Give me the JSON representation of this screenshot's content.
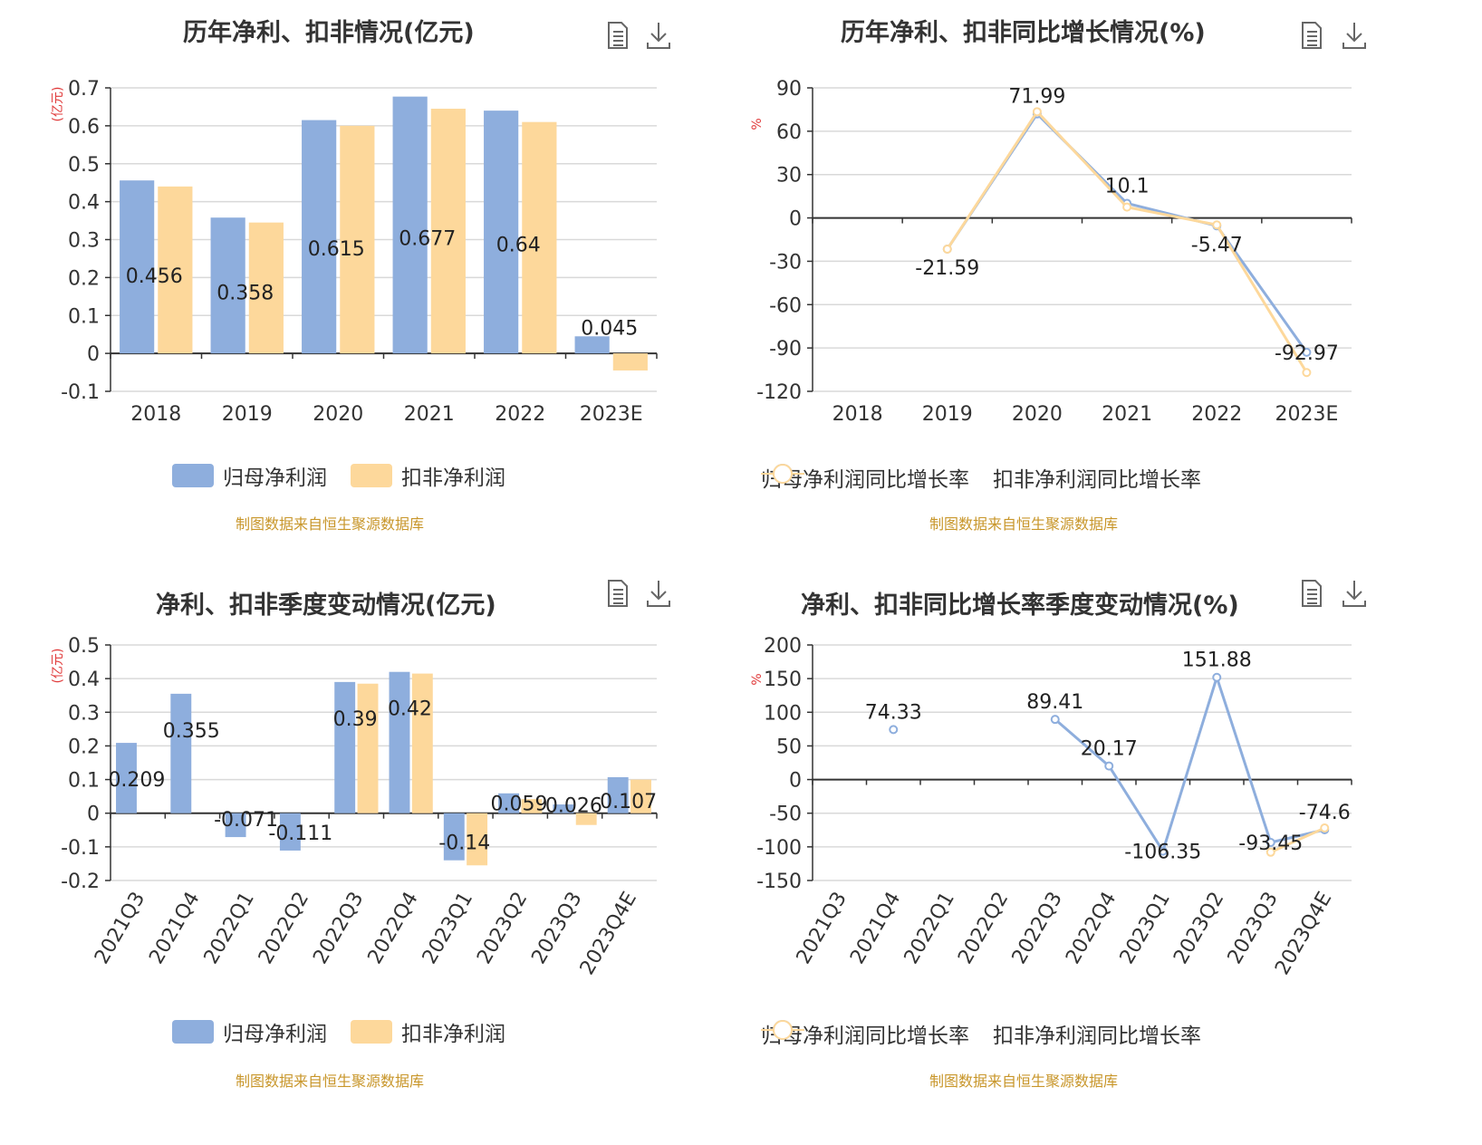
{
  "toolbar": {
    "icons": [
      "document-icon",
      "download-icon"
    ]
  },
  "colors": {
    "series1": "#8eaedd",
    "series2": "#fdd89b",
    "axis": "#333333",
    "grid": "#d9d9d9",
    "unit": "#e03a3a",
    "credit": "#c8962a"
  },
  "panels": [
    {
      "title": "历年净利、扣非情况(亿元)",
      "unit": "(亿元)",
      "credit": "制图数据来自恒生聚源数据库",
      "legend": [
        "归母净利润",
        "扣非净利润"
      ]
    },
    {
      "title": "历年净利、扣非同比增长情况(%)",
      "unit": "%",
      "credit": "制图数据来自恒生聚源数据库",
      "legend": [
        "归母净利润同比增长率",
        "扣非净利润同比增长率"
      ]
    },
    {
      "title": "净利、扣非季度变动情况(亿元)",
      "unit": "(亿元)",
      "credit": "制图数据来自恒生聚源数据库",
      "legend": [
        "归母净利润",
        "扣非净利润"
      ]
    },
    {
      "title": "净利、扣非同比增长率季度变动情况(%)",
      "unit": "%",
      "credit": "制图数据来自恒生聚源数据库",
      "legend": [
        "归母净利润同比增长率",
        "扣非净利润同比增长率"
      ]
    }
  ],
  "chart_data": [
    {
      "type": "bar",
      "title": "历年净利、扣非情况(亿元)",
      "ylabel": "(亿元)",
      "categories": [
        "2018",
        "2019",
        "2020",
        "2021",
        "2022",
        "2023E"
      ],
      "ylim": [
        -0.1,
        0.7
      ],
      "yticks": [
        0.7,
        0.6,
        0.5,
        0.4,
        0.3,
        0.2,
        0.1,
        0,
        -0.1
      ],
      "grid": true,
      "legend_position": "bottom",
      "series": [
        {
          "name": "归母净利润",
          "values": [
            0.456,
            0.358,
            0.615,
            0.677,
            0.64,
            0.045
          ],
          "labels": [
            "0.456",
            "0.358",
            "0.615",
            "0.677",
            "0.64",
            "0.045"
          ]
        },
        {
          "name": "扣非净利润",
          "values": [
            0.44,
            0.345,
            0.6,
            0.645,
            0.61,
            -0.045
          ]
        }
      ]
    },
    {
      "type": "line",
      "title": "历年净利、扣非同比增长情况(%)",
      "ylabel": "%",
      "categories": [
        "2018",
        "2019",
        "2020",
        "2021",
        "2022",
        "2023E"
      ],
      "ylim": [
        -120,
        90
      ],
      "yticks": [
        90,
        60,
        30,
        0,
        -30,
        -60,
        -90,
        -120
      ],
      "grid": true,
      "legend_position": "bottom",
      "series": [
        {
          "name": "归母净利润同比增长率",
          "values": [
            null,
            -21.59,
            71.99,
            10.1,
            -5.47,
            -92.97
          ],
          "labels": [
            "",
            "-21.59",
            "71.99",
            "10.1",
            "-5.47",
            "-92.97"
          ]
        },
        {
          "name": "扣非净利润同比增长率",
          "values": [
            null,
            -21.6,
            73.5,
            7.5,
            -4.8,
            -107
          ]
        }
      ]
    },
    {
      "type": "bar",
      "title": "净利、扣非季度变动情况(亿元)",
      "ylabel": "(亿元)",
      "categories": [
        "2021Q3",
        "2021Q4",
        "2022Q1",
        "2022Q2",
        "2022Q3",
        "2022Q4",
        "2023Q1",
        "2023Q2",
        "2023Q3",
        "2023Q4E"
      ],
      "ylim": [
        -0.2,
        0.5
      ],
      "yticks": [
        0.5,
        0.4,
        0.3,
        0.2,
        0.1,
        0,
        -0.1,
        -0.2
      ],
      "grid": true,
      "legend_position": "bottom",
      "series": [
        {
          "name": "归母净利润",
          "values": [
            0.209,
            0.355,
            -0.071,
            -0.111,
            0.39,
            0.42,
            -0.14,
            0.059,
            0.026,
            0.107
          ],
          "labels": [
            "0.209",
            "0.355",
            "-0.071",
            "-0.111",
            "0.39",
            "0.42",
            "-0.14",
            "0.059",
            "0.026",
            "0.107"
          ]
        },
        {
          "name": "扣非净利润",
          "values": [
            null,
            null,
            null,
            null,
            0.385,
            0.415,
            -0.155,
            0.042,
            -0.035,
            0.1
          ]
        }
      ]
    },
    {
      "type": "line",
      "title": "净利、扣非同比增长率季度变动情况(%)",
      "ylabel": "%",
      "categories": [
        "2021Q3",
        "2021Q4",
        "2022Q1",
        "2022Q2",
        "2022Q3",
        "2022Q4",
        "2023Q1",
        "2023Q2",
        "2023Q3",
        "2023Q4E"
      ],
      "ylim": [
        -150,
        200
      ],
      "yticks": [
        200,
        150,
        100,
        50,
        0,
        -50,
        -100,
        -150
      ],
      "grid": true,
      "legend_position": "bottom",
      "series": [
        {
          "name": "归母净利润同比增长率",
          "values": [
            null,
            74.33,
            null,
            null,
            89.41,
            20.17,
            -106.35,
            151.88,
            -93.45,
            -74.6
          ],
          "labels": [
            "",
            "74.33",
            "",
            "",
            "89.41",
            "20.17",
            "-106.35",
            "151.88",
            "-93.45",
            "-74.6"
          ]
        },
        {
          "name": "扣非净利润同比增长率",
          "values": [
            null,
            null,
            null,
            null,
            null,
            null,
            null,
            null,
            -108,
            -72
          ]
        }
      ]
    }
  ]
}
